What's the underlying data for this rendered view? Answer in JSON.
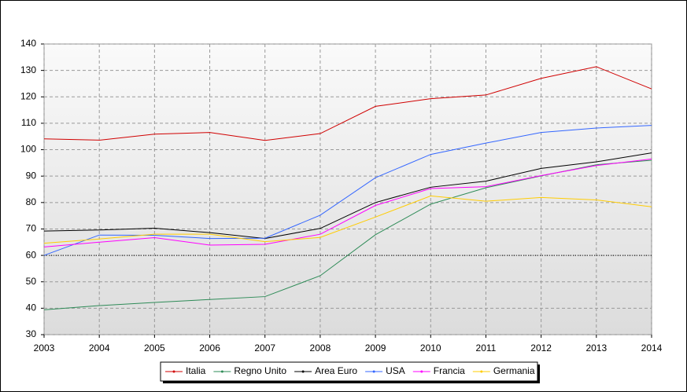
{
  "chart_data": {
    "type": "line",
    "x": [
      2003,
      2004,
      2005,
      2006,
      2007,
      2008,
      2009,
      2010,
      2011,
      2012,
      2013,
      2014
    ],
    "xlim": [
      2003,
      2014
    ],
    "xticks": [
      2003,
      2004,
      2005,
      2006,
      2007,
      2008,
      2009,
      2010,
      2011,
      2012,
      2013,
      2014
    ],
    "ylim": [
      30,
      140
    ],
    "yticks": [
      30,
      40,
      50,
      60,
      70,
      80,
      90,
      100,
      110,
      120,
      130,
      140
    ],
    "grid": true,
    "reference_line": 60,
    "legend": "bottom",
    "series": [
      {
        "name": "Italia",
        "color": "#d00000",
        "values": [
          104.1,
          103.6,
          105.9,
          106.5,
          103.5,
          106.1,
          116.4,
          119.3,
          120.7,
          127.0,
          131.4,
          123.0
        ]
      },
      {
        "name": "Regno Unito",
        "color": "#2e8b57",
        "values": [
          39.4,
          41.0,
          42.2,
          43.3,
          44.4,
          52.3,
          67.8,
          79.4,
          85.6,
          90.1,
          94.3,
          96.0
        ]
      },
      {
        "name": "Area Euro",
        "color": "#000000",
        "values": [
          69.2,
          69.6,
          70.3,
          68.6,
          66.4,
          70.2,
          80.0,
          85.8,
          88.1,
          92.9,
          95.4,
          98.8
        ]
      },
      {
        "name": "USA",
        "color": "#3366ff",
        "values": [
          60.0,
          67.7,
          67.6,
          66.4,
          66.5,
          75.2,
          89.4,
          98.2,
          102.5,
          106.5,
          108.2,
          109.2
        ]
      },
      {
        "name": "Francia",
        "color": "#ff00ff",
        "values": [
          63.2,
          65.0,
          66.7,
          63.9,
          64.2,
          68.0,
          78.9,
          85.3,
          86.0,
          90.2,
          94.0,
          96.5
        ]
      },
      {
        "name": "Germania",
        "color": "#ffcc00",
        "values": [
          64.6,
          66.2,
          68.0,
          68.0,
          65.2,
          66.8,
          74.5,
          82.5,
          80.5,
          81.9,
          81.0,
          78.4
        ]
      }
    ]
  }
}
